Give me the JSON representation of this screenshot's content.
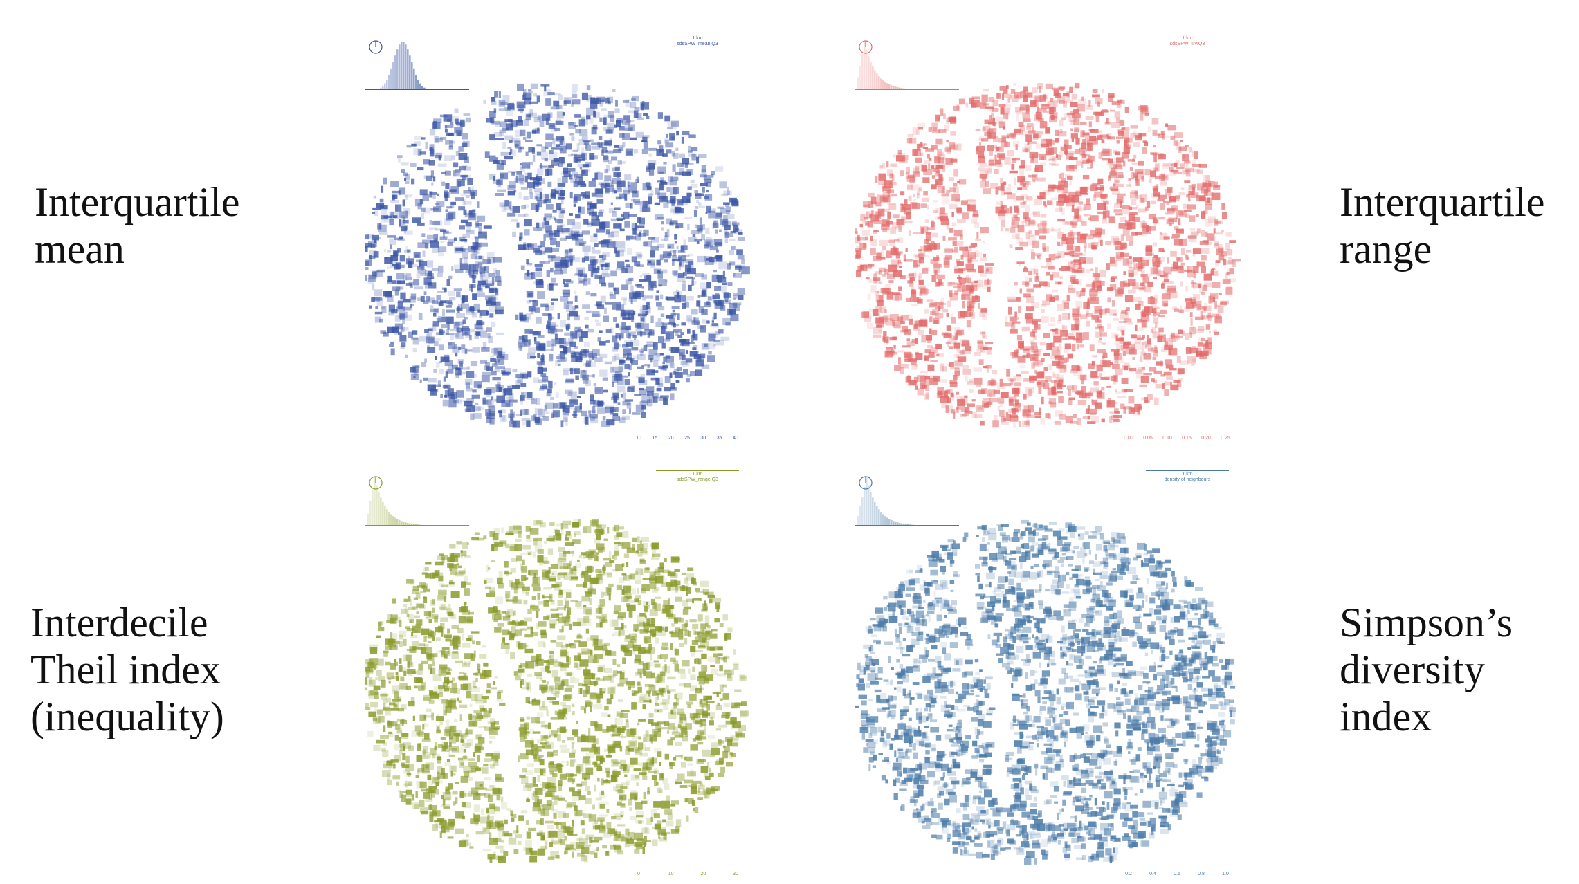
{
  "labels": {
    "iq_mean": [
      "Interquartile",
      "mean"
    ],
    "iq_range": [
      "Interquartile",
      "range"
    ],
    "theil": [
      "Interdecile",
      "Theil index",
      "(inequality)"
    ],
    "simpson": [
      "Simpson’s",
      "diversity",
      "index"
    ]
  },
  "panels": [
    {
      "id": "iq-mean",
      "color": "#3b55a5",
      "scale_text": "1 km",
      "legend_title": "sdsSPW_meanIQ3",
      "ticks": [
        "10",
        "15",
        "20",
        "25",
        "30",
        "35",
        "40"
      ]
    },
    {
      "id": "iq-range",
      "color": "#e36a6a",
      "scale_text": "1 km",
      "legend_title": "sdsSPW_iIlvIQ3",
      "ticks": [
        "0.00",
        "0.05",
        "0.10",
        "0.15",
        "0.20",
        "0.25"
      ]
    },
    {
      "id": "theil",
      "color": "#8a9a2a",
      "scale_text": "1 km",
      "legend_title": "sdsSPW_rangeIQ3",
      "ticks": [
        "0",
        "10",
        "20",
        "30"
      ]
    },
    {
      "id": "simpson",
      "color": "#4a7aa8",
      "scale_text": "1 km",
      "legend_title": "density of neighbours",
      "ticks": [
        "0.2",
        "0.4",
        "0.6",
        "0.8",
        "1.0"
      ]
    }
  ]
}
